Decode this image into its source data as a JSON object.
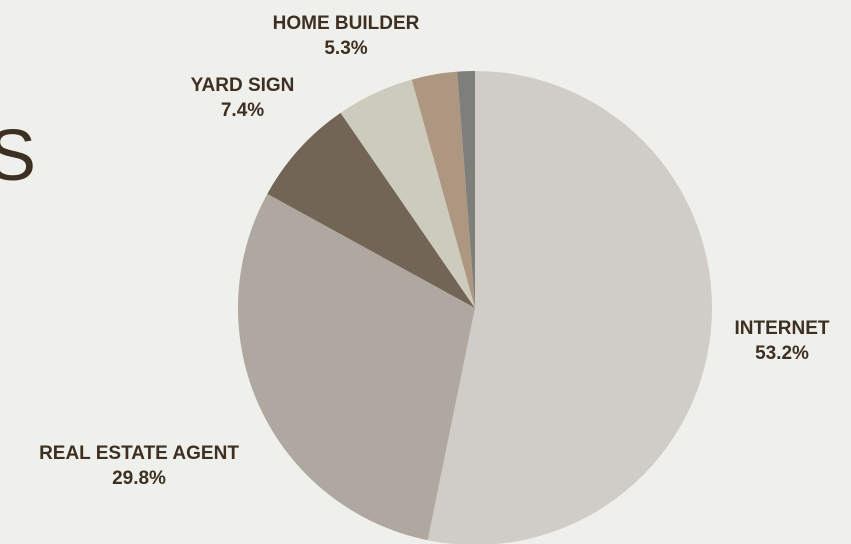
{
  "chart_data": {
    "type": "pie",
    "title": "",
    "slices": [
      {
        "label": "INTERNET",
        "value_label": "53.2%",
        "value": 53.2,
        "color": "#d0ccc8"
      },
      {
        "label": "REAL ESTATE AGENT",
        "value_label": "29.8%",
        "value": 29.8,
        "color": "#afa8a1"
      },
      {
        "label": "YARD SIGN",
        "value_label": "7.4%",
        "value": 7.4,
        "color": "#726555"
      },
      {
        "label": "HOME BUILDER",
        "value_label": "5.3%",
        "value": 5.3,
        "color": "#cdcabe"
      },
      {
        "label": "",
        "value_label": "",
        "value": 3.1,
        "color": "#ad9780"
      },
      {
        "label": "",
        "value_label": "",
        "value": 1.2,
        "color": "#7e7e7b"
      }
    ],
    "start_angle_deg": 0,
    "direction": "clockwise",
    "background": "#efefeb",
    "label_color": "#3d2f22"
  },
  "page_fragment": {
    "edge_text": "S"
  }
}
